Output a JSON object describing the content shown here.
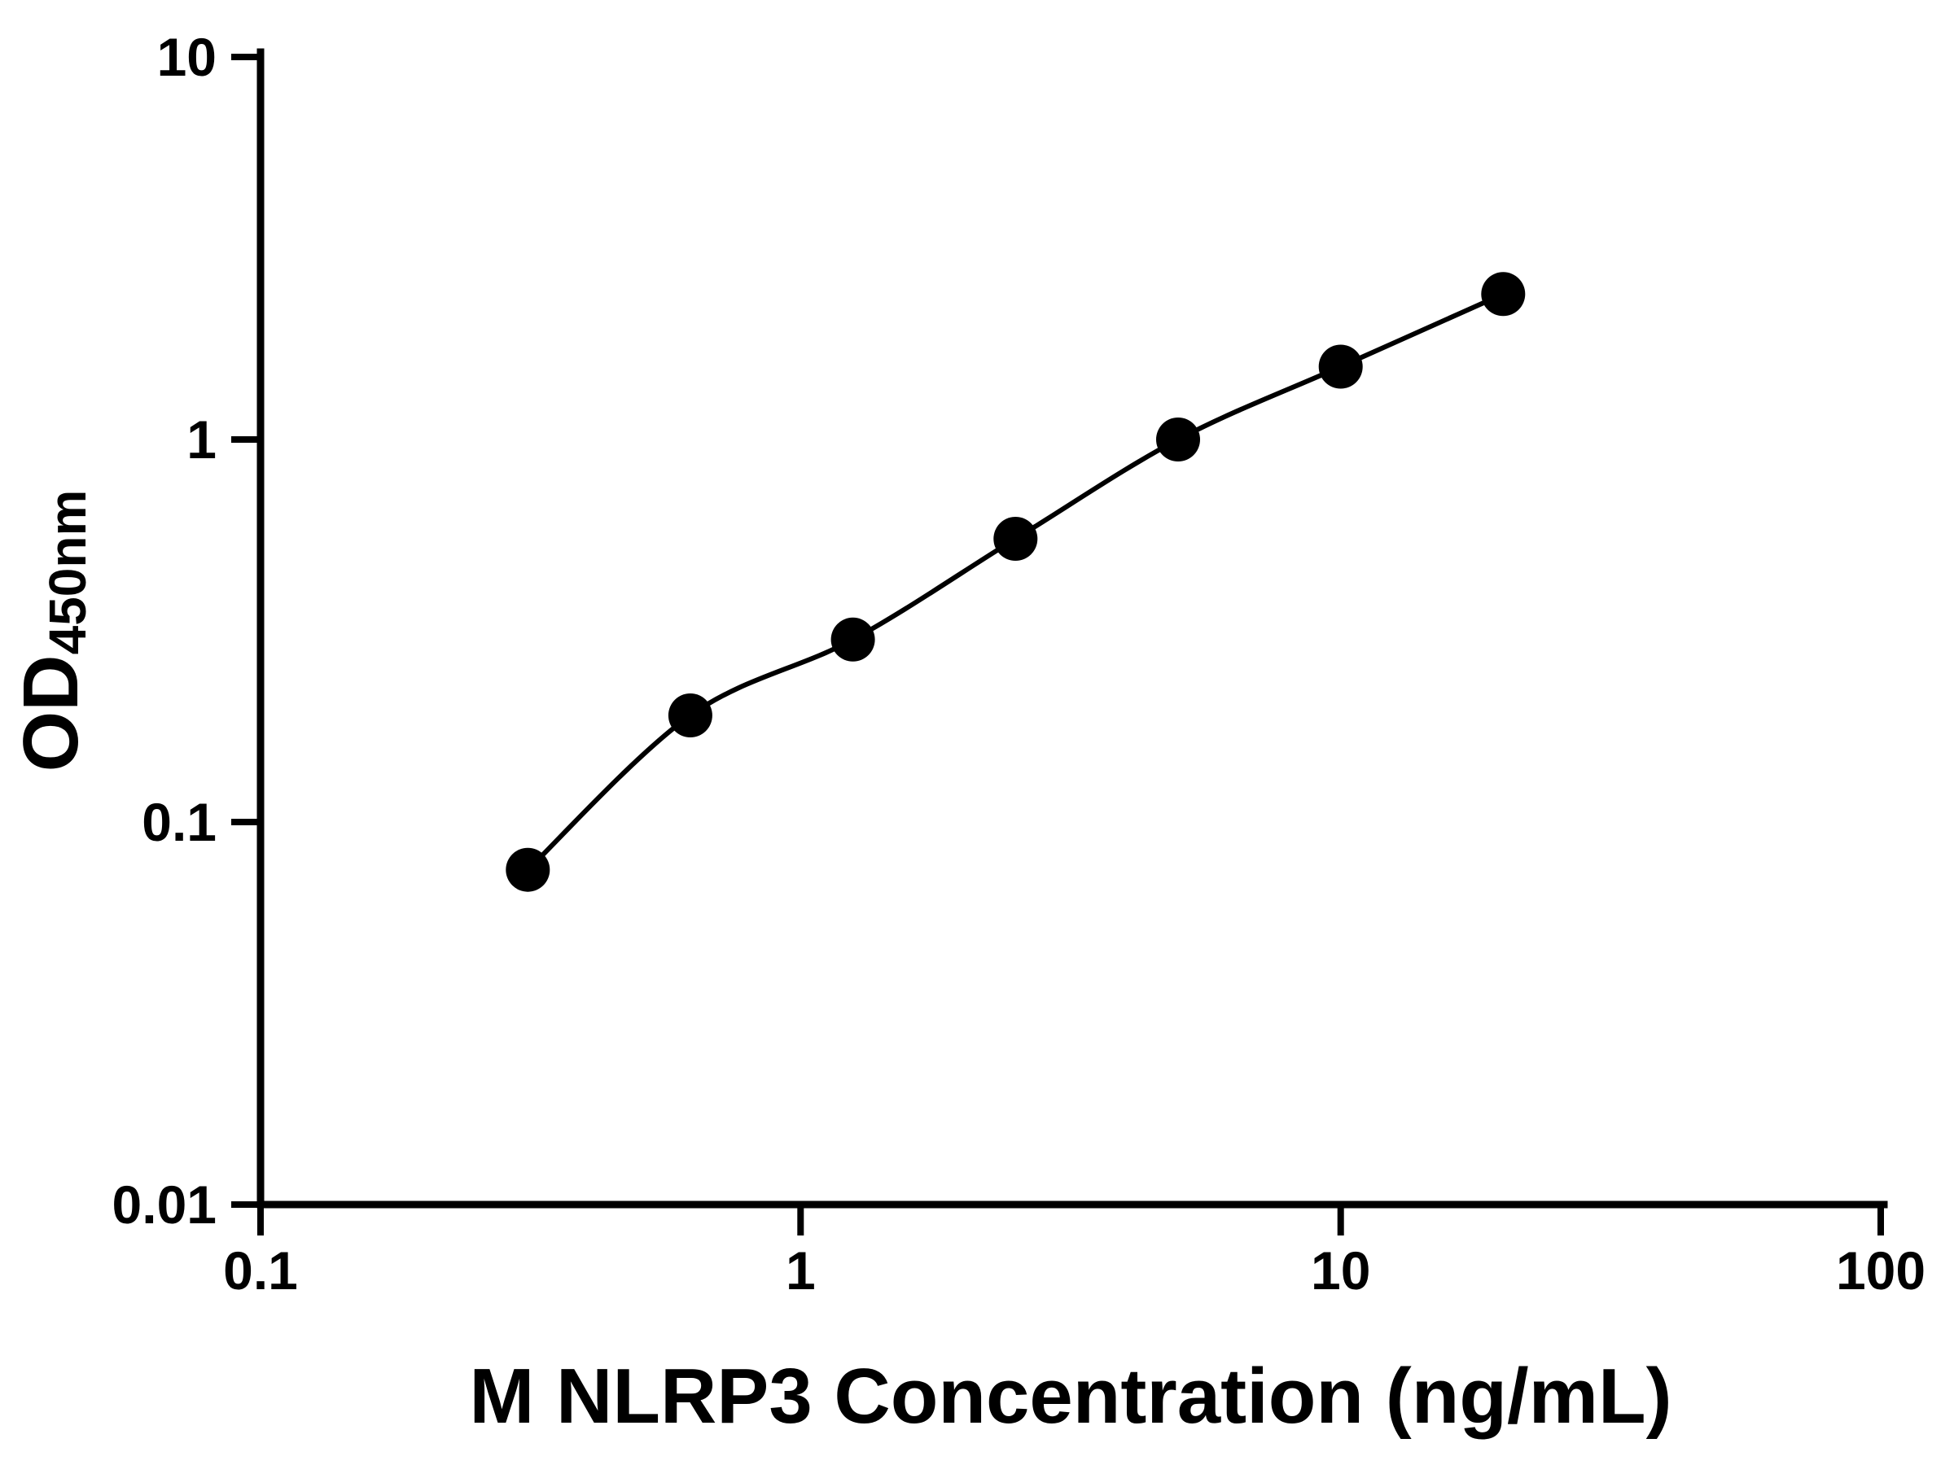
{
  "chart_data": {
    "type": "scatter",
    "title": "",
    "xlabel": "M NLRP3 Concentration (ng/mL)",
    "ylabel": "OD450nm",
    "ylabel_main": "OD",
    "ylabel_sub": "450nm",
    "x_scale": "log",
    "y_scale": "log",
    "xlim": [
      0.1,
      100
    ],
    "ylim": [
      0.01,
      10
    ],
    "x_ticks": [
      0.1,
      1,
      10,
      100
    ],
    "x_tick_labels": [
      "0.1",
      "1",
      "10",
      "100"
    ],
    "y_ticks": [
      0.01,
      0.1,
      1,
      10
    ],
    "y_tick_labels": [
      "0.01",
      "0.1",
      "1",
      "10"
    ],
    "grid": false,
    "legend": false,
    "series": [
      {
        "x": [
          0.3125,
          0.625,
          1.25,
          2.5,
          5,
          10,
          20
        ],
        "y": [
          0.075,
          0.19,
          0.3,
          0.55,
          1.0,
          1.55,
          2.4
        ],
        "marker": "filled-circle",
        "line": "smooth"
      }
    ],
    "colors": {
      "background": "#ffffff",
      "axis": "#000000",
      "text": "#000000",
      "marker": "#000000",
      "curve": "#000000"
    }
  }
}
